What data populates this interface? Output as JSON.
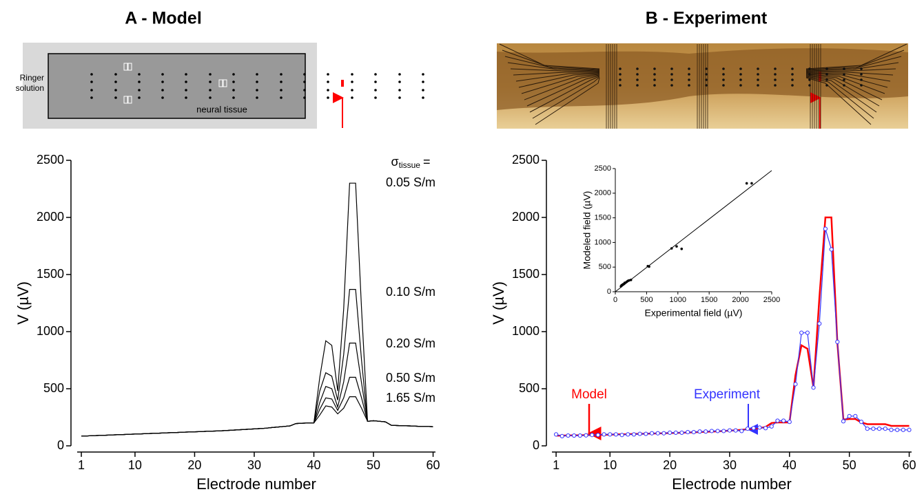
{
  "chart_data": [
    {
      "type": "line",
      "title": "A - Model",
      "xlabel": "Electrode number",
      "ylabel": "V (µV)",
      "annotation": {
        "symbol": "σ",
        "subscript": "tissue",
        "suffix": "="
      },
      "x": [
        1,
        2,
        3,
        4,
        5,
        6,
        7,
        8,
        9,
        10,
        11,
        12,
        13,
        14,
        15,
        16,
        17,
        18,
        19,
        20,
        21,
        22,
        23,
        24,
        25,
        26,
        27,
        28,
        29,
        30,
        31,
        32,
        33,
        34,
        35,
        36,
        37,
        38,
        39,
        40,
        41,
        42,
        43,
        44,
        45,
        46,
        47,
        48,
        49,
        50,
        51,
        52,
        53,
        54,
        55,
        56,
        57,
        58,
        59,
        60
      ],
      "xlim": [
        0.3,
        60.4
      ],
      "xticks": [
        1,
        10,
        20,
        30,
        40,
        50,
        60
      ],
      "ylim": [
        0,
        2500
      ],
      "yticks": [
        0,
        500,
        1000,
        1500,
        2000,
        2500
      ],
      "series": [
        {
          "name": "0.05 S/m",
          "color": "#000000",
          "values": [
            85,
            87,
            89,
            91,
            93,
            95,
            97,
            99,
            101,
            103,
            105,
            107,
            109,
            111,
            113,
            115,
            117,
            119,
            121,
            123,
            125,
            127,
            129,
            131,
            133,
            136,
            139,
            142,
            145,
            148,
            151,
            155,
            160,
            165,
            170,
            175,
            195,
            198,
            200,
            200,
            600,
            920,
            880,
            480,
            1200,
            2300,
            2300,
            1200,
            215,
            220,
            215,
            210,
            180,
            178,
            176,
            175,
            172,
            170,
            170,
            168
          ]
        },
        {
          "name": "0.10 S/m",
          "color": "#000000",
          "values": [
            85,
            87,
            89,
            91,
            93,
            95,
            97,
            99,
            101,
            103,
            105,
            107,
            109,
            111,
            113,
            115,
            117,
            119,
            121,
            123,
            125,
            127,
            129,
            131,
            133,
            136,
            139,
            142,
            145,
            148,
            151,
            155,
            160,
            165,
            170,
            175,
            195,
            198,
            200,
            200,
            480,
            640,
            610,
            400,
            800,
            1370,
            1370,
            750,
            215,
            220,
            215,
            210,
            180,
            178,
            176,
            175,
            172,
            170,
            170,
            168
          ]
        },
        {
          "name": "0.20 S/m",
          "color": "#000000",
          "values": [
            85,
            87,
            89,
            91,
            93,
            95,
            97,
            99,
            101,
            103,
            105,
            107,
            109,
            111,
            113,
            115,
            117,
            119,
            121,
            123,
            125,
            127,
            129,
            131,
            133,
            136,
            139,
            142,
            145,
            148,
            151,
            155,
            160,
            165,
            170,
            175,
            195,
            198,
            200,
            200,
            380,
            520,
            500,
            340,
            560,
            900,
            900,
            550,
            215,
            220,
            215,
            210,
            180,
            178,
            176,
            175,
            172,
            170,
            170,
            168
          ]
        },
        {
          "name": "0.50 S/m",
          "color": "#000000",
          "values": [
            85,
            87,
            89,
            91,
            93,
            95,
            97,
            99,
            101,
            103,
            105,
            107,
            109,
            111,
            113,
            115,
            117,
            119,
            121,
            123,
            125,
            127,
            129,
            131,
            133,
            136,
            139,
            142,
            145,
            148,
            151,
            155,
            160,
            165,
            170,
            175,
            195,
            198,
            200,
            200,
            320,
            420,
            410,
            310,
            420,
            600,
            600,
            420,
            215,
            220,
            215,
            210,
            180,
            178,
            176,
            175,
            172,
            170,
            170,
            168
          ]
        },
        {
          "name": "1.65 S/m",
          "color": "#000000",
          "values": [
            85,
            87,
            89,
            91,
            93,
            95,
            97,
            99,
            101,
            103,
            105,
            107,
            109,
            111,
            113,
            115,
            117,
            119,
            121,
            123,
            125,
            127,
            129,
            131,
            133,
            136,
            139,
            142,
            145,
            148,
            151,
            155,
            160,
            165,
            170,
            175,
            195,
            198,
            200,
            200,
            270,
            350,
            340,
            280,
            330,
            430,
            430,
            330,
            215,
            220,
            215,
            210,
            180,
            178,
            176,
            175,
            172,
            170,
            170,
            168
          ]
        }
      ]
    },
    {
      "type": "line",
      "title": "B - Experiment",
      "xlabel": "Electrode number",
      "ylabel": "V (µV)",
      "x": [
        1,
        2,
        3,
        4,
        5,
        6,
        7,
        8,
        9,
        10,
        11,
        12,
        13,
        14,
        15,
        16,
        17,
        18,
        19,
        20,
        21,
        22,
        23,
        24,
        25,
        26,
        27,
        28,
        29,
        30,
        31,
        32,
        33,
        34,
        35,
        36,
        37,
        38,
        39,
        40,
        41,
        42,
        43,
        44,
        45,
        46,
        47,
        48,
        49,
        50,
        51,
        52,
        53,
        54,
        55,
        56,
        57,
        58,
        59,
        60
      ],
      "xlim": [
        0.3,
        60.4
      ],
      "xticks": [
        1,
        10,
        20,
        30,
        40,
        50,
        60
      ],
      "ylim": [
        0,
        2500
      ],
      "yticks": [
        0,
        500,
        1000,
        1500,
        2000,
        2500
      ],
      "series": [
        {
          "name": "Model",
          "color": "#ff0000",
          "values": [
            90,
            90,
            91,
            92,
            93,
            94,
            95,
            96,
            97,
            98,
            100,
            101,
            102,
            104,
            105,
            106,
            108,
            109,
            110,
            112,
            113,
            115,
            117,
            119,
            121,
            123,
            125,
            127,
            130,
            133,
            136,
            140,
            145,
            150,
            155,
            165,
            200,
            205,
            205,
            205,
            620,
            880,
            850,
            510,
            1300,
            2000,
            2000,
            900,
            230,
            235,
            235,
            205,
            190,
            190,
            190,
            190,
            175,
            175,
            175,
            175
          ]
        },
        {
          "name": "Experiment",
          "color": "#3333ff",
          "markers": "circle",
          "values": [
            100,
            85,
            90,
            90,
            90,
            92,
            95,
            95,
            100,
            100,
            100,
            95,
            100,
            100,
            105,
            105,
            110,
            110,
            110,
            115,
            115,
            115,
            120,
            120,
            125,
            125,
            130,
            130,
            130,
            135,
            135,
            130,
            150,
            155,
            160,
            155,
            170,
            220,
            220,
            210,
            540,
            990,
            990,
            510,
            1070,
            1900,
            1720,
            910,
            215,
            260,
            260,
            210,
            150,
            150,
            150,
            150,
            140,
            140,
            140,
            140
          ]
        }
      ]
    },
    {
      "type": "scatter",
      "xlabel": "Experimental field (µV)",
      "ylabel": "Modeled field (µV)",
      "xlim": [
        0,
        2500
      ],
      "xticks": [
        0,
        500,
        1000,
        1500,
        2000,
        2500
      ],
      "ylim": [
        0,
        2500
      ],
      "yticks": [
        0,
        500,
        1000,
        1500,
        2000,
        2500
      ],
      "color": "#000000",
      "x": [
        2100,
        2180,
        900,
        980,
        1060,
        520,
        540,
        220,
        250,
        150,
        120,
        100,
        90,
        180,
        200,
        140
      ],
      "y": [
        2200,
        2200,
        880,
        920,
        870,
        520,
        510,
        230,
        240,
        180,
        150,
        130,
        110,
        200,
        220,
        160
      ],
      "fit": {
        "x": [
          0,
          2500
        ],
        "y": [
          0,
          2460
        ]
      }
    }
  ],
  "schematic": {
    "ringer": [
      "Ringer",
      "solution"
    ],
    "tissue": "neural tissue"
  }
}
